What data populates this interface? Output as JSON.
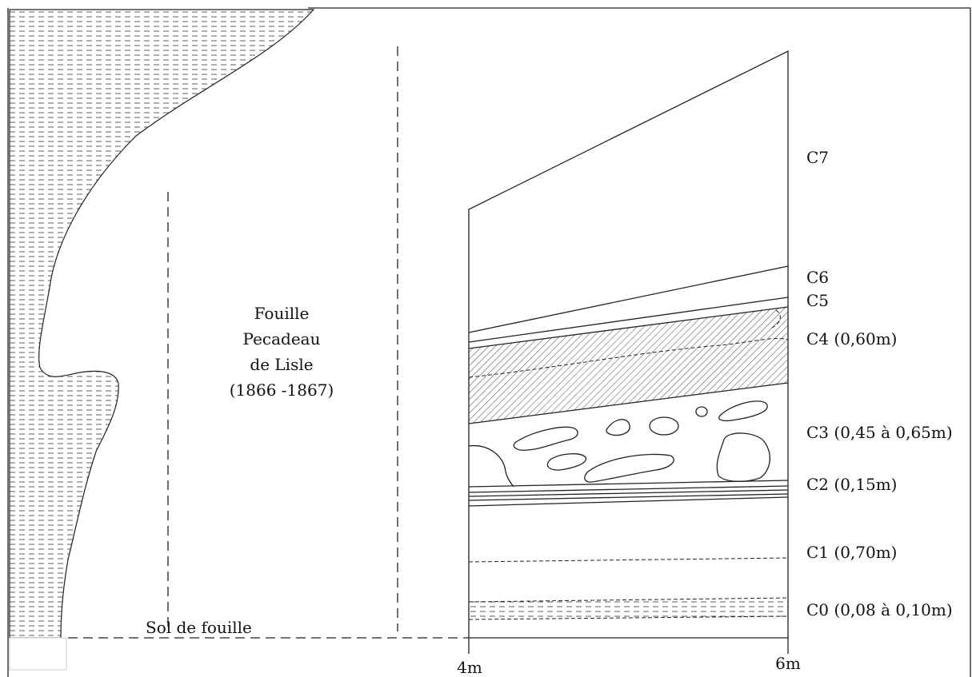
{
  "excavation": {
    "lines": [
      "Fouille",
      "Pecadeau",
      "de Lisle",
      "(1866 -1867)"
    ]
  },
  "floor_label": "Sol de fouille",
  "scale": [
    "4m",
    "6m"
  ],
  "layers": [
    "C7",
    "C6",
    "C5",
    "C4 (0,60m)",
    "C3 (0,45 à 0,65m)",
    "C2 (0,15m)",
    "C1 (0,70m)",
    "C0 (0,08 à 0,10m)"
  ]
}
